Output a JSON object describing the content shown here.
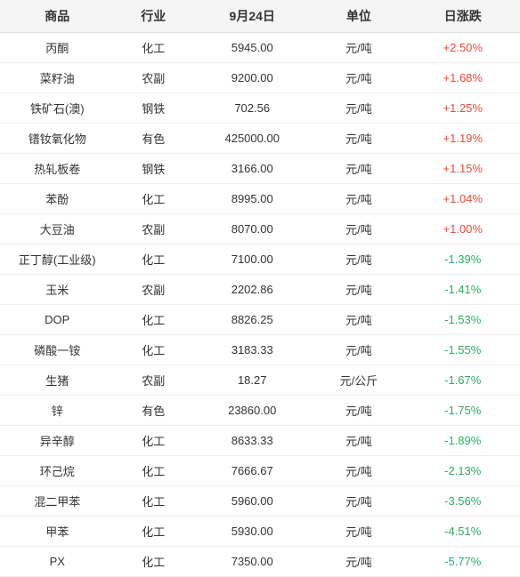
{
  "table": {
    "columns": [
      "商品",
      "行业",
      "9月24日",
      "单位",
      "日涨跌"
    ],
    "rows": [
      {
        "product": "丙酮",
        "industry": "化工",
        "price": "5945.00",
        "unit": "元/吨",
        "change": "+2.50%",
        "direction": "up"
      },
      {
        "product": "菜籽油",
        "industry": "农副",
        "price": "9200.00",
        "unit": "元/吨",
        "change": "+1.68%",
        "direction": "up"
      },
      {
        "product": "铁矿石(澳)",
        "industry": "钢铁",
        "price": "702.56",
        "unit": "元/吨",
        "change": "+1.25%",
        "direction": "up"
      },
      {
        "product": "镨钕氧化物",
        "industry": "有色",
        "price": "425000.00",
        "unit": "元/吨",
        "change": "+1.19%",
        "direction": "up"
      },
      {
        "product": "热轧板卷",
        "industry": "钢铁",
        "price": "3166.00",
        "unit": "元/吨",
        "change": "+1.15%",
        "direction": "up"
      },
      {
        "product": "苯酚",
        "industry": "化工",
        "price": "8995.00",
        "unit": "元/吨",
        "change": "+1.04%",
        "direction": "up"
      },
      {
        "product": "大豆油",
        "industry": "农副",
        "price": "8070.00",
        "unit": "元/吨",
        "change": "+1.00%",
        "direction": "up"
      },
      {
        "product": "正丁醇(工业级)",
        "industry": "化工",
        "price": "7100.00",
        "unit": "元/吨",
        "change": "-1.39%",
        "direction": "down"
      },
      {
        "product": "玉米",
        "industry": "农副",
        "price": "2202.86",
        "unit": "元/吨",
        "change": "-1.41%",
        "direction": "down"
      },
      {
        "product": "DOP",
        "industry": "化工",
        "price": "8826.25",
        "unit": "元/吨",
        "change": "-1.53%",
        "direction": "down"
      },
      {
        "product": "磷酸一铵",
        "industry": "化工",
        "price": "3183.33",
        "unit": "元/吨",
        "change": "-1.55%",
        "direction": "down"
      },
      {
        "product": "生猪",
        "industry": "农副",
        "price": "18.27",
        "unit": "元/公斤",
        "change": "-1.67%",
        "direction": "down"
      },
      {
        "product": "锌",
        "industry": "有色",
        "price": "23860.00",
        "unit": "元/吨",
        "change": "-1.75%",
        "direction": "down"
      },
      {
        "product": "异辛醇",
        "industry": "化工",
        "price": "8633.33",
        "unit": "元/吨",
        "change": "-1.89%",
        "direction": "down"
      },
      {
        "product": "环己烷",
        "industry": "化工",
        "price": "7666.67",
        "unit": "元/吨",
        "change": "-2.13%",
        "direction": "down"
      },
      {
        "product": "混二甲苯",
        "industry": "化工",
        "price": "5960.00",
        "unit": "元/吨",
        "change": "-3.56%",
        "direction": "down"
      },
      {
        "product": "甲苯",
        "industry": "化工",
        "price": "5930.00",
        "unit": "元/吨",
        "change": "-4.51%",
        "direction": "down"
      },
      {
        "product": "PX",
        "industry": "化工",
        "price": "7350.00",
        "unit": "元/吨",
        "change": "-5.77%",
        "direction": "down"
      }
    ],
    "styling": {
      "header_bg": "#f5f5f5",
      "header_color": "#333333",
      "cell_color": "#333333",
      "up_color": "#e74c3c",
      "down_color": "#27ae60",
      "border_color": "#e0e0e0",
      "row_border_color": "#f0f0f0",
      "header_fontsize": 14,
      "cell_fontsize": 13
    }
  }
}
